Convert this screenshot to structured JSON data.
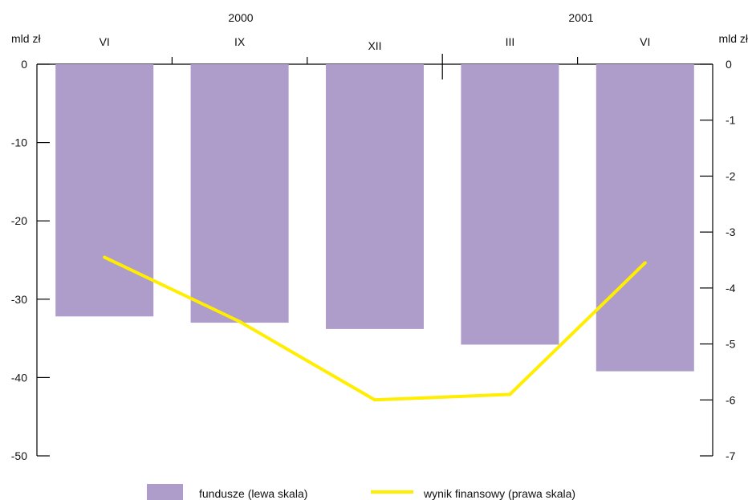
{
  "chart_data": {
    "type": "bar",
    "categories": [
      "VI",
      "IX",
      "XII",
      "III",
      "VI"
    ],
    "year_labels": [
      "2000",
      "2001"
    ],
    "left_axis": {
      "unit": "mld zł",
      "ylim": [
        -50,
        0
      ],
      "ticks": [
        0,
        -10,
        -20,
        -30,
        -40,
        -50
      ]
    },
    "right_axis": {
      "unit": "mld zł",
      "ylim": [
        -7,
        0
      ],
      "ticks": [
        0,
        -1,
        -2,
        -3,
        -4,
        -5,
        -6,
        -7
      ]
    },
    "series": [
      {
        "name": "fundusze (lewa skala)",
        "type": "bar",
        "axis": "left",
        "color": "#ae9ccb",
        "values": [
          -32.2,
          -33.0,
          -33.8,
          -35.8,
          -39.2
        ]
      },
      {
        "name": "wynik finansowy (prawa skala)",
        "type": "line",
        "axis": "right",
        "color": "#ffee00",
        "values": [
          -3.45,
          -4.6,
          -6.0,
          -5.9,
          -3.55
        ]
      }
    ],
    "legend_position": "bottom",
    "grid": false
  }
}
